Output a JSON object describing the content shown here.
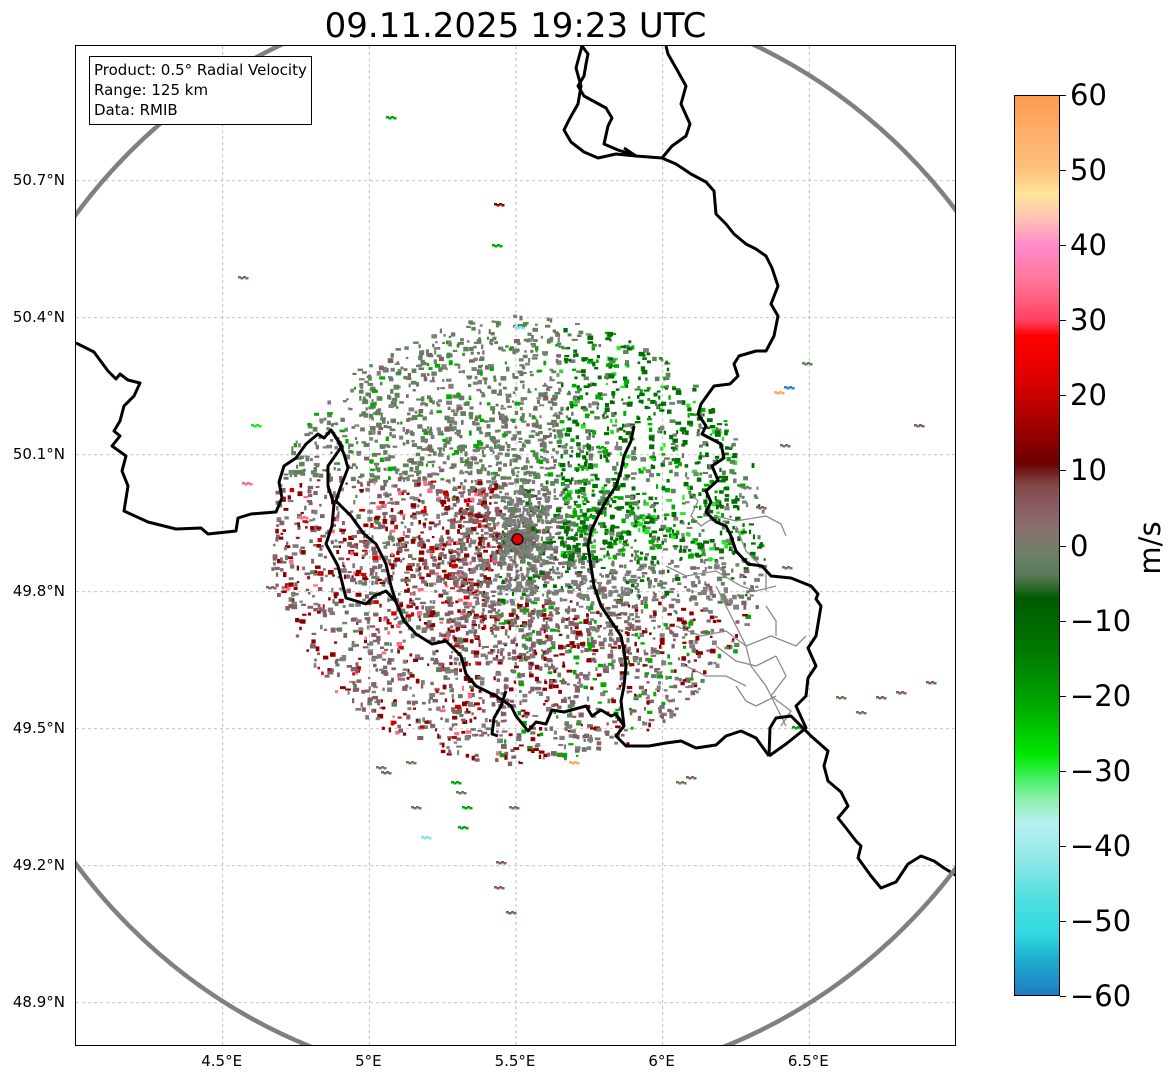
{
  "title": "09.11.2025 19:23 UTC",
  "info_box": {
    "product": "Product: 0.5° Radial Velocity",
    "range": "Range: 125 km",
    "data": "Data: RMIB"
  },
  "axes": {
    "lat_labels": [
      "50.7°N",
      "50.4°N",
      "50.1°N",
      "49.8°N",
      "49.5°N",
      "49.2°N",
      "48.9°N"
    ],
    "lon_labels": [
      "4.5°E",
      "5°E",
      "5.5°E",
      "6°E",
      "6.5°E"
    ],
    "lat_values": [
      50.7,
      50.4,
      50.1,
      49.8,
      49.5,
      49.2,
      48.9
    ],
    "lon_values": [
      4.5,
      5.0,
      5.5,
      6.0,
      6.5
    ],
    "lat_range": [
      48.8,
      51.0
    ],
    "lon_range": [
      4.0,
      7.0
    ],
    "grid": true
  },
  "radar": {
    "lat": 49.915,
    "lon": 5.505,
    "range_km": 125,
    "marker_color": "#e00000",
    "circle_color": "#808080"
  },
  "colorbar": {
    "unit": "m/s",
    "min": -60,
    "max": 60,
    "tick_labels": [
      "60",
      "50",
      "40",
      "30",
      "20",
      "10",
      "0",
      "−10",
      "−20",
      "−30",
      "−40",
      "−50",
      "−60"
    ],
    "tick_values": [
      60,
      50,
      40,
      30,
      20,
      10,
      0,
      -10,
      -20,
      -30,
      -40,
      -50,
      -60
    ],
    "stops": [
      {
        "value": 60,
        "color": "#ff9a50"
      },
      {
        "value": 55,
        "color": "#ffae6a"
      },
      {
        "value": 50,
        "color": "#ffc27c"
      },
      {
        "value": 47,
        "color": "#ffe49a"
      },
      {
        "value": 44,
        "color": "#ffc6b0"
      },
      {
        "value": 42,
        "color": "#ffaabb"
      },
      {
        "value": 40,
        "color": "#ff88cc"
      },
      {
        "value": 36,
        "color": "#ff7aa0"
      },
      {
        "value": 33,
        "color": "#ff6080"
      },
      {
        "value": 30,
        "color": "#ff4060"
      },
      {
        "value": 28,
        "color": "#ff0000"
      },
      {
        "value": 22,
        "color": "#dd0000"
      },
      {
        "value": 18,
        "color": "#b50000"
      },
      {
        "value": 14,
        "color": "#8c0000"
      },
      {
        "value": 11,
        "color": "#6a0000"
      },
      {
        "value": 8,
        "color": "#844848"
      },
      {
        "value": 5,
        "color": "#8a5e68"
      },
      {
        "value": 2,
        "color": "#8a7070"
      },
      {
        "value": -1,
        "color": "#6e8068"
      },
      {
        "value": -4,
        "color": "#5a7a58"
      },
      {
        "value": -7,
        "color": "#005a00"
      },
      {
        "value": -12,
        "color": "#006e00"
      },
      {
        "value": -18,
        "color": "#009000"
      },
      {
        "value": -23,
        "color": "#00b800"
      },
      {
        "value": -28,
        "color": "#00e800"
      },
      {
        "value": -31,
        "color": "#40f060"
      },
      {
        "value": -34,
        "color": "#90f0b0"
      },
      {
        "value": -37,
        "color": "#b8f0f0"
      },
      {
        "value": -42,
        "color": "#90e8e8"
      },
      {
        "value": -47,
        "color": "#50e0e0"
      },
      {
        "value": -52,
        "color": "#30d8e0"
      },
      {
        "value": -55,
        "color": "#20b0d0"
      },
      {
        "value": -58,
        "color": "#2090c8"
      },
      {
        "value": -60,
        "color": "#1e7cc0"
      }
    ]
  },
  "palette": {
    "gray": "#7f7f7f",
    "graygreen": "#627f5e",
    "brownpink": "#855e66",
    "darkgreen": "#006e00",
    "green": "#00aa00",
    "brightgreen": "#22e822",
    "darkred": "#8c0000",
    "red": "#d00000",
    "pink": "#ff6a88",
    "cyan": "#7fe8ee",
    "orange": "#ffaa55",
    "blue": "#2288cc"
  }
}
